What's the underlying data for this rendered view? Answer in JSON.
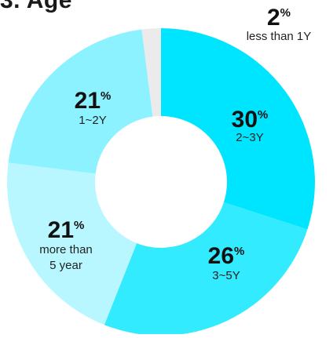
{
  "title": "3. Age",
  "chart_data": {
    "type": "pie",
    "title": "3. Age",
    "unit_suffix": "%",
    "slices": [
      {
        "label": "2~3Y",
        "value": 30,
        "display": "30",
        "color": "#00e5ff"
      },
      {
        "label": "3~5Y",
        "value": 26,
        "display": "26",
        "color": "#33ebff"
      },
      {
        "label": "more than 5 year",
        "label_lines": [
          "more than",
          "5 year"
        ],
        "value": 21,
        "display": "21",
        "color": "#b8f7ff"
      },
      {
        "label": "1~2Y",
        "value": 21,
        "display": "21",
        "color": "#8cf2ff"
      },
      {
        "label": "less than 1Y",
        "value": 2,
        "display": "2",
        "color": "#ebebeb"
      }
    ]
  }
}
